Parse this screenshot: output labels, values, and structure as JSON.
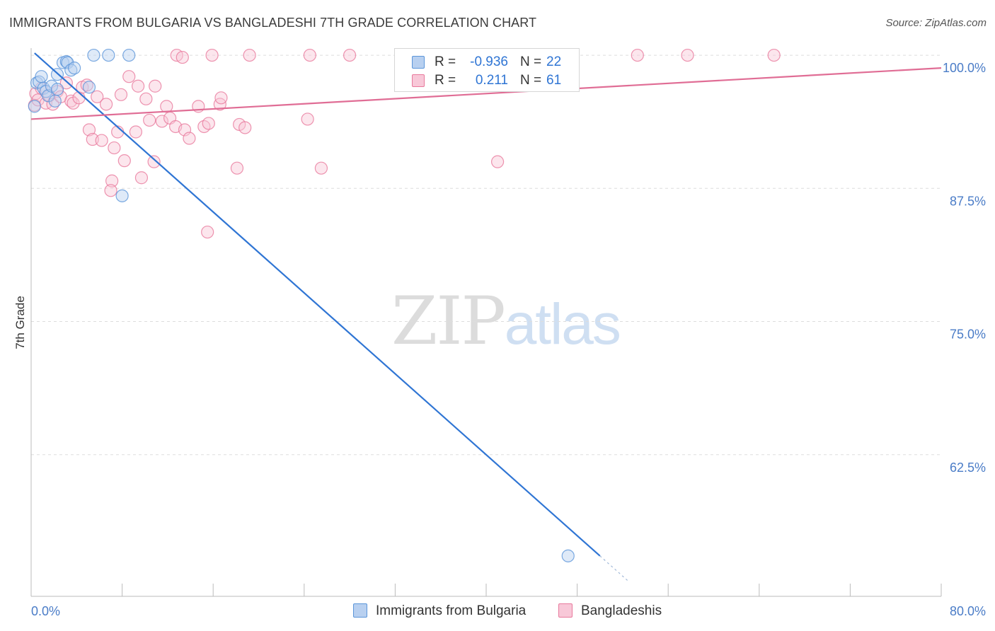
{
  "header": {
    "title": "IMMIGRANTS FROM BULGARIA VS BANGLADESHI 7TH GRADE CORRELATION CHART",
    "source": "Source: ZipAtlas.com"
  },
  "watermark": {
    "zip": "ZIP",
    "atlas": "atlas"
  },
  "colors": {
    "blue": "#5b95d9",
    "blue_fill": "#b8d0f0",
    "blue_line": "#2f75d4",
    "pink": "#e8799c",
    "pink_fill": "#f8c8d8",
    "pink_line": "#e06d95",
    "axis_text": "#4a7cc7",
    "grid": "#dddddd"
  },
  "legend": {
    "rows": [
      {
        "r_label": "R =",
        "r_value": "-0.936",
        "n_label": "N =",
        "n_value": "22"
      },
      {
        "r_label": "R =",
        "r_value": "0.211",
        "n_label": "N =",
        "n_value": "61"
      }
    ]
  },
  "bottom_legend": [
    {
      "label": "Immigrants from Bulgaria"
    },
    {
      "label": "Bangladeshis"
    }
  ],
  "chart_data": {
    "type": "scatter",
    "title": "IMMIGRANTS FROM BULGARIA VS BANGLADESHI 7TH GRADE CORRELATION CHART",
    "xlabel": "",
    "ylabel": "7th Grade",
    "xlim": [
      0,
      80
    ],
    "ylim": [
      50.4,
      101.2
    ],
    "x_tick_labels": [
      "0.0%",
      "80.0%"
    ],
    "y_ticks": [
      100,
      87.5,
      75,
      62.5
    ],
    "y_tick_labels": [
      "100.0%",
      "87.5%",
      "75.0%",
      "62.5%"
    ],
    "grid": true,
    "series": [
      {
        "name": "Immigrants from Bulgaria",
        "color": "blue",
        "trend": {
          "x0": 0.3,
          "y0": 100.2,
          "x1": 50.0,
          "y1": 53.0,
          "dash_to_x": 52.6
        },
        "points": [
          [
            0.3,
            95.2
          ],
          [
            0.5,
            97.4
          ],
          [
            0.7,
            97.5
          ],
          [
            0.9,
            98.0
          ],
          [
            1.1,
            96.9
          ],
          [
            1.3,
            96.6
          ],
          [
            1.5,
            96.2
          ],
          [
            1.8,
            97.1
          ],
          [
            2.1,
            95.7
          ],
          [
            2.3,
            96.8
          ],
          [
            2.3,
            98.2
          ],
          [
            2.8,
            99.3
          ],
          [
            3.1,
            99.4
          ],
          [
            3.2,
            99.3
          ],
          [
            3.5,
            98.6
          ],
          [
            3.8,
            98.8
          ],
          [
            5.1,
            97.0
          ],
          [
            5.5,
            100.0
          ],
          [
            6.8,
            100.0
          ],
          [
            8.0,
            86.8
          ],
          [
            8.6,
            100.0
          ],
          [
            47.2,
            53.0
          ]
        ]
      },
      {
        "name": "Bangladeshis",
        "color": "pink",
        "trend": {
          "x0": 0,
          "y0": 94.0,
          "x1": 80,
          "y1": 98.8
        },
        "points": [
          [
            0.3,
            95.3
          ],
          [
            0.4,
            96.4
          ],
          [
            0.6,
            95.8
          ],
          [
            0.9,
            96.9
          ],
          [
            1.3,
            95.5
          ],
          [
            1.6,
            96.2
          ],
          [
            1.9,
            95.4
          ],
          [
            2.3,
            96.6
          ],
          [
            2.6,
            96.1
          ],
          [
            3.1,
            97.4
          ],
          [
            3.5,
            95.7
          ],
          [
            3.7,
            95.5
          ],
          [
            4.2,
            96.0
          ],
          [
            4.5,
            97.0
          ],
          [
            4.9,
            97.2
          ],
          [
            5.1,
            93.0
          ],
          [
            5.4,
            92.1
          ],
          [
            5.8,
            96.1
          ],
          [
            6.2,
            92.0
          ],
          [
            6.6,
            95.4
          ],
          [
            7.1,
            88.2
          ],
          [
            7.0,
            87.3
          ],
          [
            7.3,
            91.3
          ],
          [
            7.6,
            92.8
          ],
          [
            7.9,
            96.3
          ],
          [
            8.2,
            90.1
          ],
          [
            8.6,
            98.0
          ],
          [
            9.2,
            92.8
          ],
          [
            9.4,
            97.1
          ],
          [
            9.7,
            88.5
          ],
          [
            10.1,
            95.9
          ],
          [
            10.4,
            93.9
          ],
          [
            10.8,
            90.0
          ],
          [
            10.9,
            97.1
          ],
          [
            11.5,
            93.8
          ],
          [
            11.9,
            95.2
          ],
          [
            12.2,
            94.1
          ],
          [
            12.7,
            93.3
          ],
          [
            12.8,
            100.0
          ],
          [
            13.3,
            99.8
          ],
          [
            13.5,
            93.0
          ],
          [
            13.9,
            92.2
          ],
          [
            14.7,
            95.2
          ],
          [
            15.2,
            93.3
          ],
          [
            15.6,
            93.6
          ],
          [
            15.5,
            83.4
          ],
          [
            15.9,
            100.0
          ],
          [
            16.6,
            95.4
          ],
          [
            16.7,
            96.0
          ],
          [
            18.1,
            89.4
          ],
          [
            18.3,
            93.5
          ],
          [
            18.8,
            93.2
          ],
          [
            19.2,
            100.0
          ],
          [
            24.3,
            94.0
          ],
          [
            24.5,
            100.0
          ],
          [
            25.5,
            89.4
          ],
          [
            28.0,
            100.0
          ],
          [
            41.0,
            90.0
          ],
          [
            53.3,
            100.0
          ],
          [
            57.7,
            100.0
          ],
          [
            65.3,
            100.0
          ]
        ]
      }
    ]
  }
}
